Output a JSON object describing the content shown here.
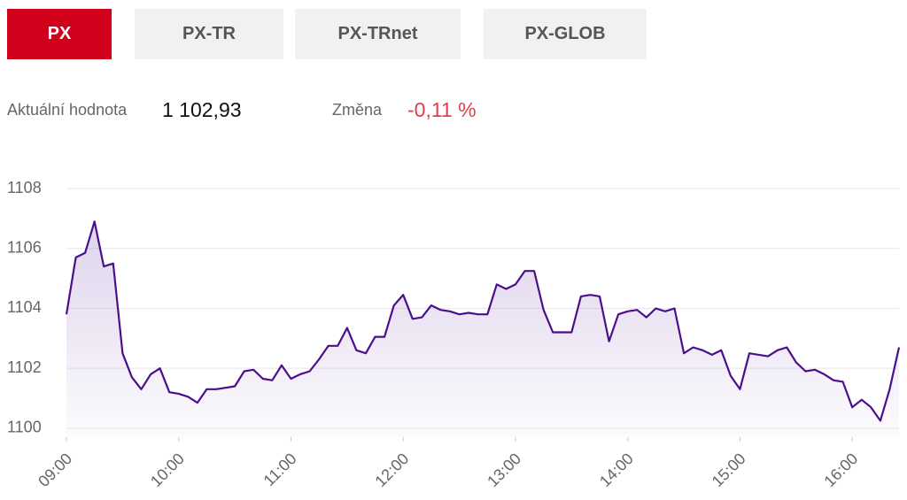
{
  "tabs": [
    {
      "label": "PX",
      "active": true
    },
    {
      "label": "PX-TR",
      "active": false
    },
    {
      "label": "PX-TRnet",
      "active": false
    },
    {
      "label": "PX-GLOB",
      "active": false
    }
  ],
  "stats": {
    "value_label": "Aktuální hodnota",
    "value": "1 102,93",
    "change_label": "Změna",
    "change": "-0,11 %"
  },
  "chart_data": {
    "type": "line",
    "x": [
      "09:00",
      "09:05",
      "09:10",
      "09:15",
      "09:20",
      "09:25",
      "09:30",
      "09:35",
      "09:40",
      "09:45",
      "09:50",
      "09:55",
      "10:00",
      "10:05",
      "10:10",
      "10:15",
      "10:20",
      "10:25",
      "10:30",
      "10:35",
      "10:40",
      "10:45",
      "10:50",
      "10:55",
      "11:00",
      "11:05",
      "11:10",
      "11:15",
      "11:20",
      "11:25",
      "11:30",
      "11:35",
      "11:40",
      "11:45",
      "11:50",
      "11:55",
      "12:00",
      "12:05",
      "12:10",
      "12:15",
      "12:20",
      "12:25",
      "12:30",
      "12:35",
      "12:40",
      "12:45",
      "12:50",
      "12:55",
      "13:00",
      "13:05",
      "13:10",
      "13:15",
      "13:20",
      "13:25",
      "13:30",
      "13:35",
      "13:40",
      "13:45",
      "13:50",
      "13:55",
      "14:00",
      "14:05",
      "14:10",
      "14:15",
      "14:20",
      "14:25",
      "14:30",
      "14:35",
      "14:40",
      "14:45",
      "14:50",
      "14:55",
      "15:00",
      "15:05",
      "15:10",
      "15:15",
      "15:20",
      "15:25",
      "15:30",
      "15:35",
      "15:40",
      "15:45",
      "15:50",
      "15:55",
      "16:00",
      "16:05",
      "16:10",
      "16:15",
      "16:20",
      "16:25"
    ],
    "values": [
      1103.8,
      1105.7,
      1105.85,
      1106.9,
      1105.4,
      1105.5,
      1102.5,
      1101.7,
      1101.3,
      1101.8,
      1102.0,
      1101.2,
      1101.15,
      1101.05,
      1100.85,
      1101.3,
      1101.3,
      1101.35,
      1101.4,
      1101.9,
      1101.95,
      1101.65,
      1101.6,
      1102.1,
      1101.65,
      1101.8,
      1101.9,
      1102.3,
      1102.75,
      1102.75,
      1103.35,
      1102.6,
      1102.5,
      1103.05,
      1103.05,
      1104.1,
      1104.45,
      1103.65,
      1103.7,
      1104.1,
      1103.95,
      1103.9,
      1103.8,
      1103.85,
      1103.8,
      1103.8,
      1104.8,
      1104.65,
      1104.8,
      1105.25,
      1105.25,
      1103.95,
      1103.2,
      1103.2,
      1103.2,
      1104.4,
      1104.45,
      1104.4,
      1102.9,
      1103.8,
      1103.9,
      1103.95,
      1103.7,
      1104.0,
      1103.9,
      1104.0,
      1102.5,
      1102.7,
      1102.6,
      1102.45,
      1102.6,
      1101.75,
      1101.3,
      1102.5,
      1102.45,
      1102.4,
      1102.6,
      1102.7,
      1102.2,
      1101.9,
      1101.95,
      1101.8,
      1101.6,
      1101.55,
      1100.7,
      1100.95,
      1100.7,
      1100.25,
      1101.3,
      1102.7
    ],
    "color": "#4b0f8c",
    "ylim": [
      1099.7,
      1108.8
    ],
    "yticks": [
      1100,
      1102,
      1104,
      1106,
      1108
    ],
    "xticks": [
      "09:00",
      "10:00",
      "11:00",
      "12:00",
      "13:00",
      "14:00",
      "15:00",
      "16:00"
    ],
    "grid": true
  }
}
